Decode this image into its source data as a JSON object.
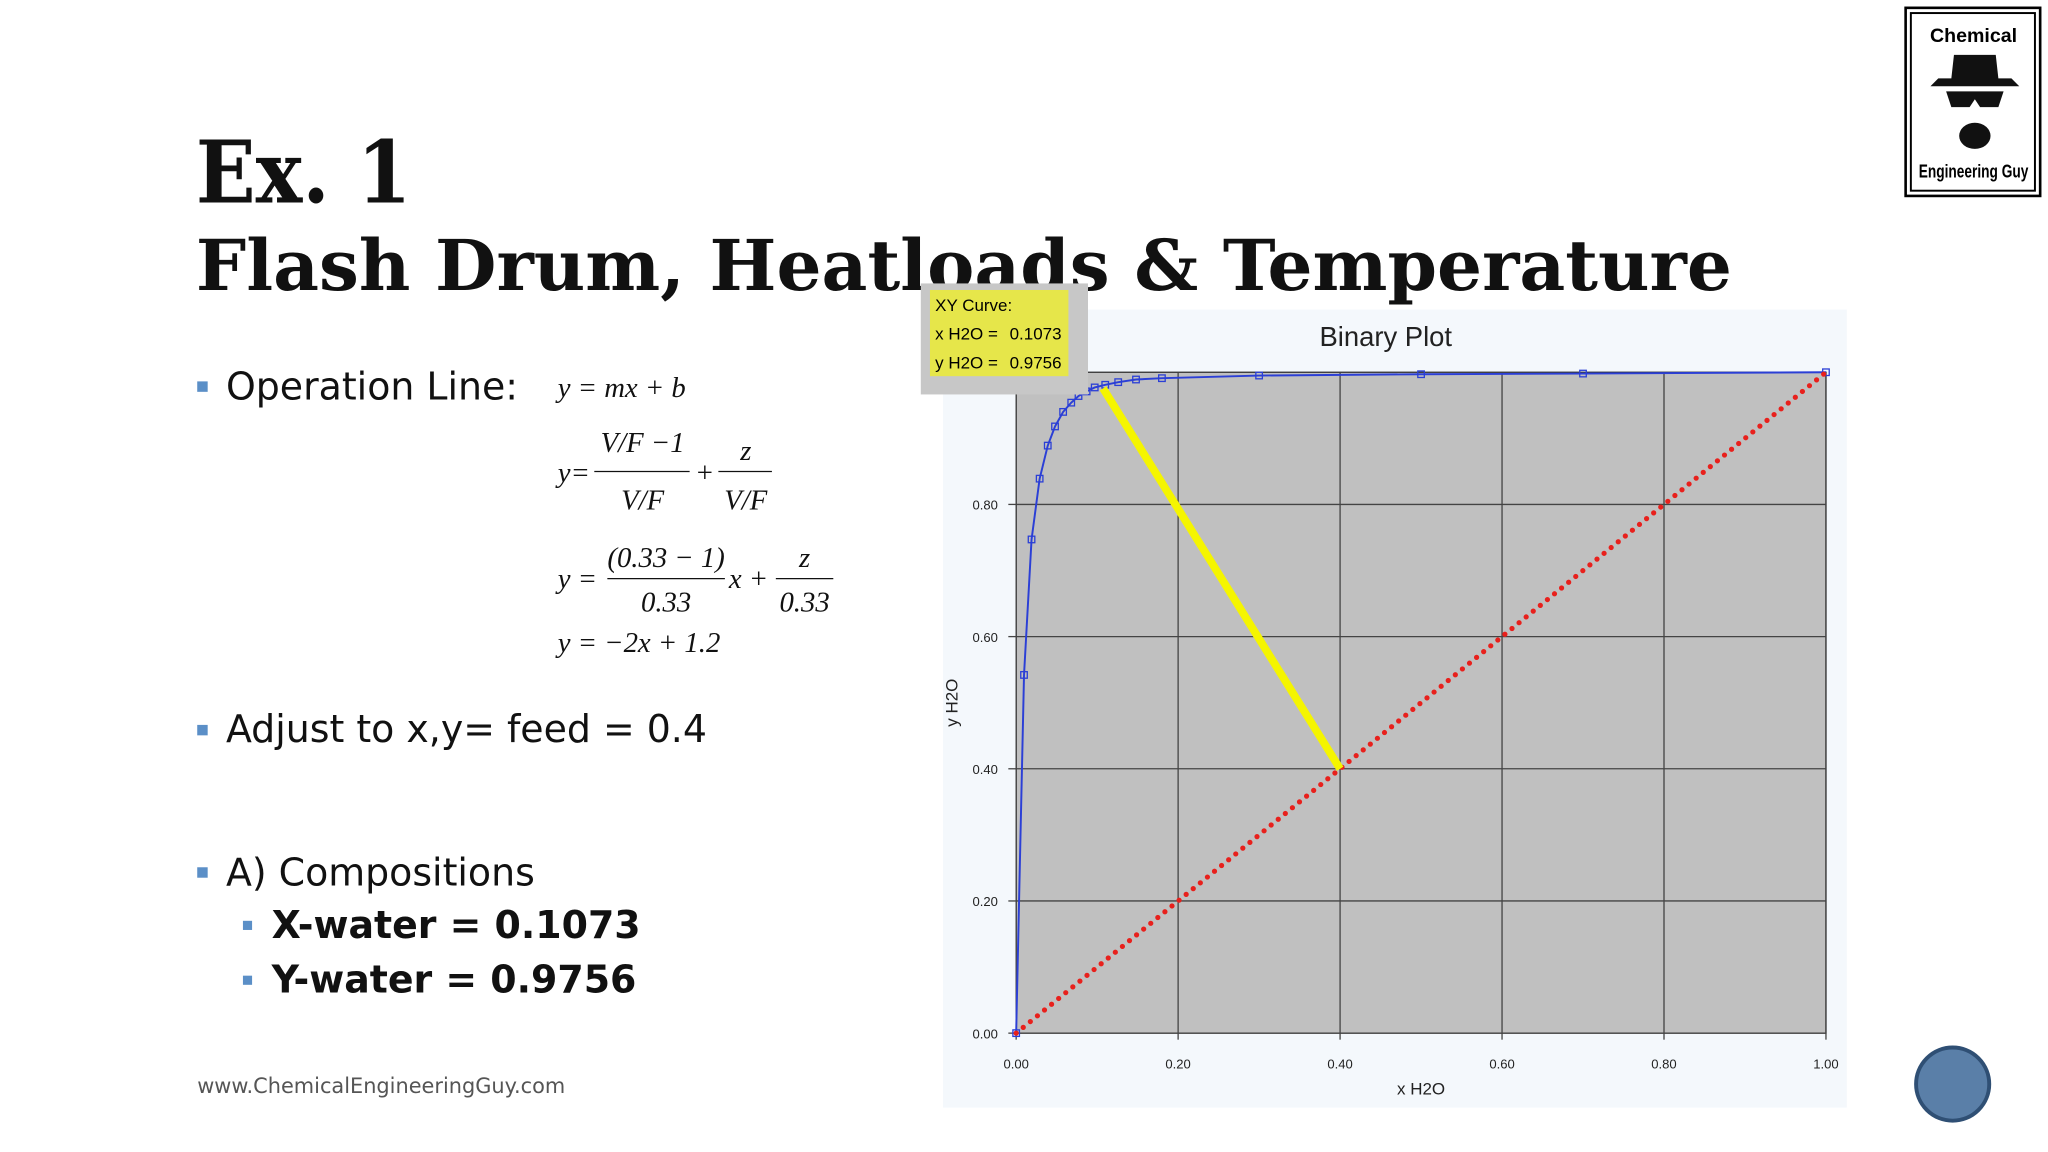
{
  "logo": {
    "top": "Chemical",
    "bottom": "Engineering Guy"
  },
  "title": "Ex. 1",
  "subtitle": "Flash Drum, Heatloads & Temperature",
  "bullets": [
    "Operation Line:",
    "Adjust to x,y= feed = 0.4",
    "A) Compositions"
  ],
  "sub_bullets": [
    "X-water = 0.1073",
    "Y-water = 0.9756"
  ],
  "equations": {
    "eq1": "y = mx + b",
    "eq2": {
      "lhs": "y=",
      "num1": "V/F −1",
      "den1": "V/F",
      "plus": "+",
      "num2": "z",
      "den2": "V/F"
    },
    "eq3": {
      "lhs": "y =",
      "num1": "(0.33 − 1)",
      "den1": "0.33",
      "mid": "x +",
      "num2": "z",
      "den2": "0.33"
    },
    "eq4": "y = −2x + 1.2"
  },
  "footer": "www.ChemicalEngineeringGuy.com",
  "tooltip": {
    "title": "XY Curve:",
    "rows": [
      {
        "label": "x H2O =",
        "value": 0.1073
      },
      {
        "label": "y H2O =",
        "value": 0.9756
      }
    ]
  },
  "chart_data": {
    "type": "line",
    "title": "Binary Plot",
    "x_label": "x H2O",
    "y_label": "y H2O",
    "xlim": [
      0,
      1
    ],
    "ylim": [
      0,
      1
    ],
    "xticks": [
      {
        "value": 0,
        "label": "0.00"
      },
      {
        "value": 0.2,
        "label": "0.20"
      },
      {
        "value": 0.4,
        "label": "0.40"
      },
      {
        "value": 0.6,
        "label": "0.60"
      },
      {
        "value": 0.8,
        "label": "0.80"
      },
      {
        "value": 1,
        "label": "1.00"
      }
    ],
    "yticks": [
      {
        "value": 0,
        "label": "0.00"
      },
      {
        "value": 0.2,
        "label": "0.20"
      },
      {
        "value": 0.4,
        "label": "0.40"
      },
      {
        "value": 0.6,
        "label": "0.60"
      },
      {
        "value": 0.8,
        "label": "0.80"
      }
    ],
    "grid": true,
    "series": [
      {
        "color": "#2b3fd6",
        "marker": "square",
        "x": [
          0,
          0.0097,
          0.019,
          0.029,
          0.039,
          0.048,
          0.058,
          0.068,
          0.077,
          0.087,
          0.097,
          0.11,
          0.126,
          0.148,
          0.18,
          0.3,
          0.5,
          0.7,
          1
        ],
        "values": [
          0,
          0.542,
          0.747,
          0.839,
          0.889,
          0.918,
          0.94,
          0.954,
          0.964,
          0.971,
          0.977,
          0.981,
          0.985,
          0.989,
          0.991,
          0.995,
          0.997,
          0.998,
          1
        ]
      },
      {
        "color": "#e8201c",
        "style": "dotted",
        "x": [
          0,
          1
        ],
        "values": [
          0,
          1
        ]
      },
      {
        "color": "#f5f500",
        "x": [
          0.1073,
          0.4
        ],
        "values": [
          0.9756,
          0.4
        ]
      }
    ]
  }
}
